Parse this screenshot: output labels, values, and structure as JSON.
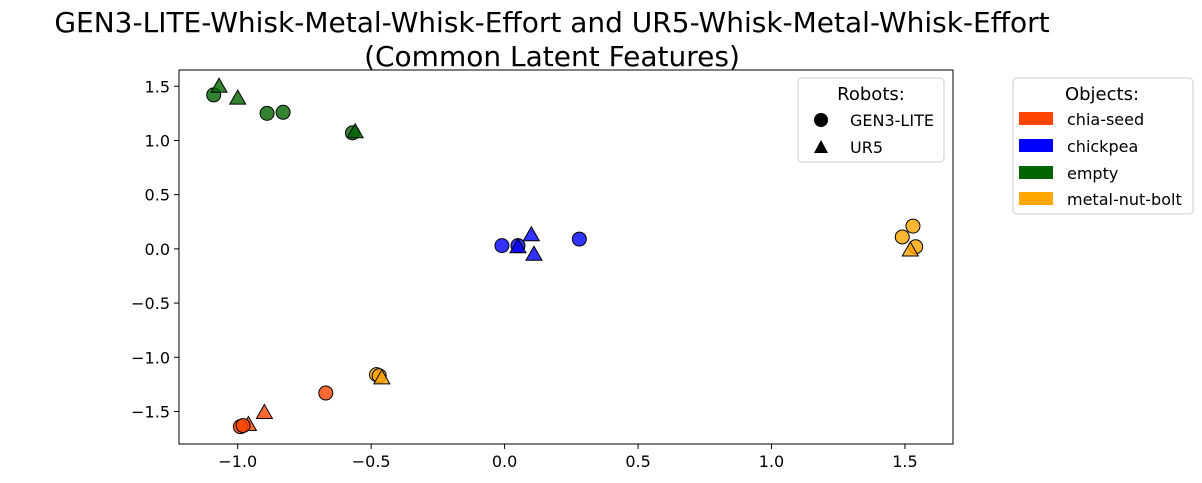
{
  "chart_data": {
    "type": "scatter",
    "title_line1": "GEN3-LITE-Whisk-Metal-Whisk-Effort and UR5-Whisk-Metal-Whisk-Effort",
    "title_line2": "(Common Latent Features)",
    "xlabel": "",
    "ylabel": "",
    "xlim": [
      -1.22,
      1.68
    ],
    "ylim": [
      -1.8,
      1.65
    ],
    "x_ticks": [
      -1.0,
      -0.5,
      0.0,
      0.5,
      1.0,
      1.5
    ],
    "x_tick_labels": [
      "−1.0",
      "−0.5",
      "0.0",
      "0.5",
      "1.0",
      "1.5"
    ],
    "y_ticks": [
      1.5,
      1.0,
      0.5,
      0.0,
      -0.5,
      -1.0,
      -1.5
    ],
    "y_tick_labels": [
      "1.5",
      "1.0",
      "0.5",
      "0.0",
      "−0.5",
      "−1.0",
      "−1.5"
    ],
    "grid": false,
    "robots_legend": {
      "title": "Robots:",
      "placement": "upper-right-inside",
      "entries": [
        {
          "label": "GEN3-LITE",
          "marker": "circle"
        },
        {
          "label": "UR5",
          "marker": "triangle"
        }
      ]
    },
    "objects_legend": {
      "title": "Objects:",
      "placement": "outside-right",
      "entries": [
        {
          "label": "chia-seed",
          "color": "#ff4500"
        },
        {
          "label": "chickpea",
          "color": "#0000ff"
        },
        {
          "label": "empty",
          "color": "#006400"
        },
        {
          "label": "metal-nut-bolt",
          "color": "#ffa500"
        }
      ]
    },
    "points": [
      {
        "x": -1.09,
        "y": 1.42,
        "robot": "GEN3-LITE",
        "object": "empty"
      },
      {
        "x": -1.07,
        "y": 1.5,
        "robot": "UR5",
        "object": "empty"
      },
      {
        "x": -1.0,
        "y": 1.39,
        "robot": "UR5",
        "object": "empty"
      },
      {
        "x": -0.89,
        "y": 1.25,
        "robot": "GEN3-LITE",
        "object": "empty"
      },
      {
        "x": -0.83,
        "y": 1.26,
        "robot": "GEN3-LITE",
        "object": "empty"
      },
      {
        "x": -0.57,
        "y": 1.07,
        "robot": "GEN3-LITE",
        "object": "empty"
      },
      {
        "x": -0.56,
        "y": 1.08,
        "robot": "UR5",
        "object": "empty"
      },
      {
        "x": -0.01,
        "y": 0.03,
        "robot": "GEN3-LITE",
        "object": "chickpea"
      },
      {
        "x": 0.05,
        "y": 0.03,
        "robot": "GEN3-LITE",
        "object": "chickpea"
      },
      {
        "x": 0.05,
        "y": 0.02,
        "robot": "UR5",
        "object": "chickpea"
      },
      {
        "x": 0.1,
        "y": 0.13,
        "robot": "UR5",
        "object": "chickpea"
      },
      {
        "x": 0.11,
        "y": -0.05,
        "robot": "UR5",
        "object": "chickpea"
      },
      {
        "x": 0.28,
        "y": 0.09,
        "robot": "GEN3-LITE",
        "object": "chickpea"
      },
      {
        "x": 1.49,
        "y": 0.11,
        "robot": "GEN3-LITE",
        "object": "metal-nut-bolt"
      },
      {
        "x": 1.53,
        "y": 0.21,
        "robot": "GEN3-LITE",
        "object": "metal-nut-bolt"
      },
      {
        "x": 1.54,
        "y": 0.02,
        "robot": "GEN3-LITE",
        "object": "metal-nut-bolt"
      },
      {
        "x": 1.52,
        "y": -0.01,
        "robot": "UR5",
        "object": "metal-nut-bolt"
      },
      {
        "x": -0.48,
        "y": -1.16,
        "robot": "GEN3-LITE",
        "object": "metal-nut-bolt"
      },
      {
        "x": -0.47,
        "y": -1.17,
        "robot": "GEN3-LITE",
        "object": "metal-nut-bolt"
      },
      {
        "x": -0.46,
        "y": -1.19,
        "robot": "UR5",
        "object": "metal-nut-bolt"
      },
      {
        "x": -0.67,
        "y": -1.33,
        "robot": "GEN3-LITE",
        "object": "chia-seed"
      },
      {
        "x": -0.9,
        "y": -1.51,
        "robot": "UR5",
        "object": "chia-seed"
      },
      {
        "x": -0.96,
        "y": -1.62,
        "robot": "UR5",
        "object": "chia-seed"
      },
      {
        "x": -0.99,
        "y": -1.64,
        "robot": "GEN3-LITE",
        "object": "chia-seed"
      },
      {
        "x": -0.98,
        "y": -1.63,
        "robot": "GEN3-LITE",
        "object": "chia-seed"
      }
    ]
  }
}
